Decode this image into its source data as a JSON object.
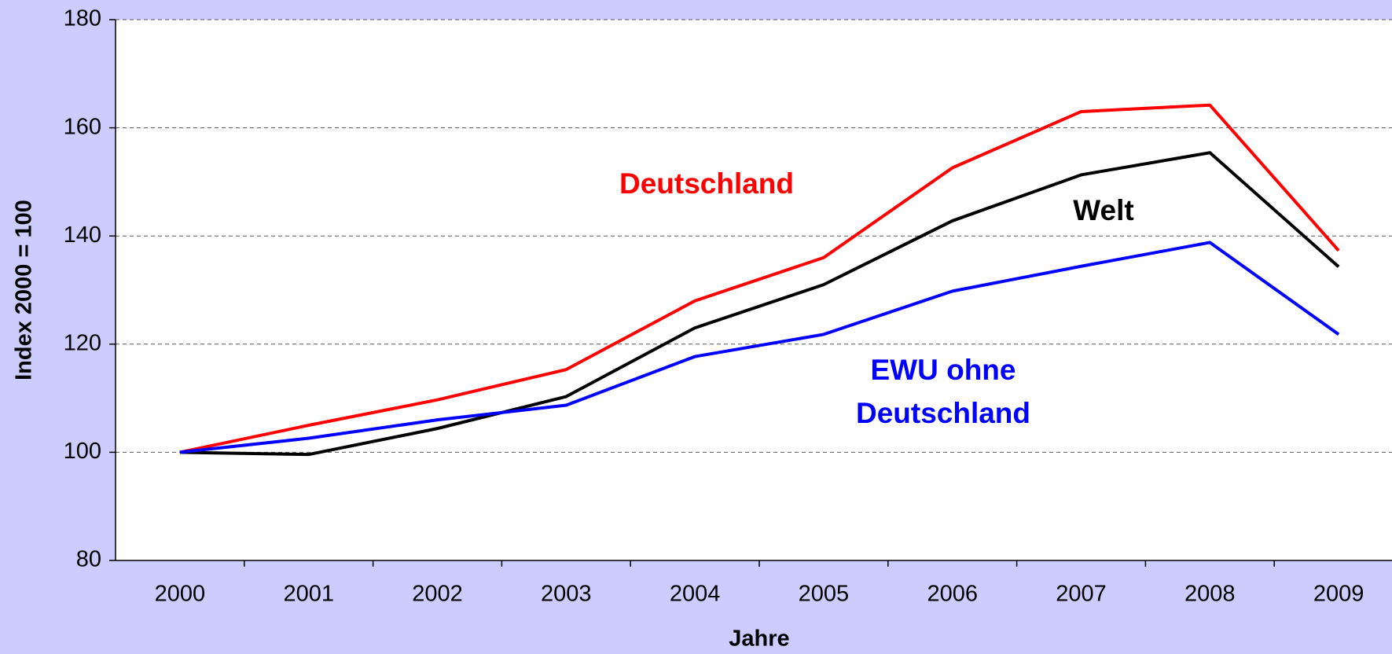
{
  "chart_data": {
    "type": "line",
    "x_label": "Jahre",
    "y_label": "Index 2000 = 100",
    "categories": [
      "2000",
      "2001",
      "2002",
      "2003",
      "2004",
      "2005",
      "2006",
      "2007",
      "2008",
      "2009"
    ],
    "series": [
      {
        "name": "Deutschland",
        "color": "#ff0000",
        "values": [
          100,
          105,
          109.7,
          115.3,
          128,
          136,
          152.6,
          163,
          164.2,
          137.3
        ]
      },
      {
        "name": "Welt",
        "color": "#000000",
        "values": [
          100,
          99.6,
          104.4,
          110.3,
          123,
          131,
          142.8,
          151.3,
          155.4,
          134.3
        ]
      },
      {
        "name": "EWU ohne Deutschland",
        "color": "#0000ff",
        "values": [
          100,
          102.6,
          106,
          108.7,
          117.7,
          121.8,
          129.8,
          134.4,
          138.8,
          121.8
        ]
      }
    ],
    "annotations": [
      {
        "lines": [
          "Deutschland"
        ],
        "color": "#ff0000"
      },
      {
        "lines": [
          "Welt"
        ],
        "color": "#000000"
      },
      {
        "lines": [
          "EWU ohne",
          "Deutschland"
        ],
        "color": "#0000ff"
      }
    ],
    "ylim": [
      80,
      180
    ],
    "yticks": [
      80,
      100,
      120,
      140,
      160,
      180
    ],
    "grid": true
  }
}
